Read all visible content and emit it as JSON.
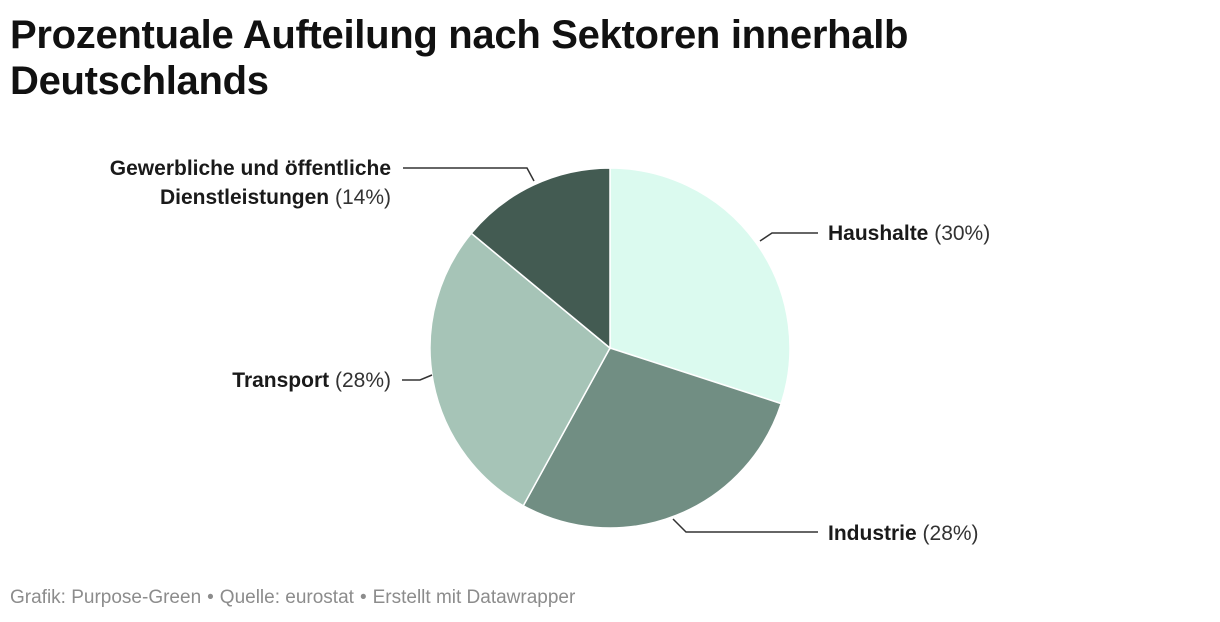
{
  "chart_data": {
    "type": "pie",
    "title": "Prozentuale Aufteilung nach Sektoren innerhalb Deutschlands",
    "slices": [
      {
        "name": "Haushalte",
        "value": 30,
        "label_suffix": "(30%)",
        "color": "#dbfaef"
      },
      {
        "name": "Industrie",
        "value": 28,
        "label_suffix": "(28%)",
        "color": "#718e83"
      },
      {
        "name": "Transport",
        "value": 28,
        "label_suffix": "(28%)",
        "color": "#a6c4b7"
      },
      {
        "name_lines": [
          "Gewerbliche und öffentliche",
          "Dienstleistungen"
        ],
        "name": "Gewerbliche und öffentliche Dienstleistungen",
        "value": 14,
        "label_suffix": "(14%)",
        "color": "#435b52"
      }
    ]
  },
  "footer": {
    "credit": "Grafik: Purpose-Green",
    "separator": "•",
    "source": "Quelle: eurostat",
    "tool": "Erstellt mit Datawrapper"
  }
}
